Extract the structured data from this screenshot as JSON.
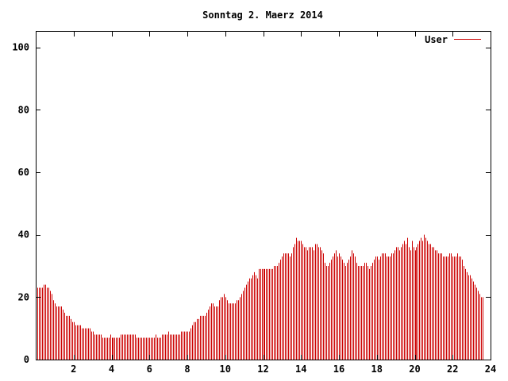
{
  "chart_data": {
    "type": "bar",
    "title": "Sonntag 2. Maerz 2014",
    "xlabel": "",
    "ylabel": "",
    "xlim": [
      0,
      24
    ],
    "ylim": [
      0,
      105
    ],
    "x_ticks": [
      2,
      4,
      6,
      8,
      10,
      12,
      14,
      16,
      18,
      20,
      22,
      24
    ],
    "x_tick_labels": [
      "2",
      "4",
      "6",
      "8",
      "10",
      "12",
      "14",
      "16",
      "18",
      "20",
      "22",
      "24"
    ],
    "y_ticks": [
      0,
      20,
      40,
      60,
      80,
      100
    ],
    "y_tick_labels": [
      "0",
      "20",
      "40",
      "60",
      "80",
      "100"
    ],
    "grid": false,
    "legend_position": "top-right",
    "colors": {
      "series": "#cc0000",
      "axes": "#000000",
      "background": "#ffffff"
    },
    "series": [
      {
        "name": "User",
        "step_minutes": 5,
        "values": [
          23,
          23,
          23,
          23,
          23,
          24,
          24,
          23,
          23,
          22,
          21,
          19,
          18,
          17,
          17,
          17,
          17,
          16,
          15,
          14,
          14,
          14,
          13,
          12,
          12,
          11,
          11,
          11,
          11,
          10,
          10,
          10,
          10,
          10,
          10,
          9,
          9,
          8,
          8,
          8,
          8,
          8,
          7,
          7,
          7,
          7,
          7,
          8,
          7,
          7,
          7,
          7,
          7,
          7,
          8,
          8,
          8,
          8,
          8,
          8,
          8,
          8,
          8,
          8,
          7,
          7,
          7,
          7,
          7,
          7,
          7,
          7,
          7,
          7,
          7,
          7,
          8,
          7,
          7,
          7,
          8,
          8,
          8,
          8,
          9,
          8,
          8,
          8,
          8,
          8,
          8,
          8,
          9,
          9,
          9,
          9,
          9,
          9,
          10,
          11,
          12,
          12,
          13,
          13,
          14,
          14,
          14,
          14,
          15,
          16,
          17,
          18,
          18,
          17,
          17,
          17,
          19,
          20,
          20,
          21,
          20,
          19,
          18,
          18,
          18,
          18,
          18,
          19,
          19,
          20,
          21,
          22,
          23,
          24,
          25,
          26,
          26,
          27,
          28,
          27,
          26,
          29,
          29,
          29,
          29,
          29,
          29,
          29,
          29,
          29,
          29,
          30,
          30,
          30,
          31,
          32,
          33,
          34,
          34,
          34,
          34,
          33,
          34,
          36,
          37,
          39,
          38,
          38,
          38,
          37,
          36,
          36,
          35,
          36,
          36,
          36,
          35,
          37,
          37,
          36,
          36,
          35,
          34,
          31,
          30,
          30,
          31,
          32,
          33,
          34,
          35,
          33,
          34,
          33,
          32,
          31,
          30,
          31,
          32,
          33,
          35,
          34,
          33,
          31,
          30,
          30,
          30,
          30,
          31,
          31,
          30,
          29,
          30,
          31,
          32,
          33,
          33,
          32,
          33,
          34,
          34,
          34,
          33,
          33,
          33,
          34,
          34,
          35,
          36,
          36,
          35,
          36,
          37,
          38,
          37,
          39,
          36,
          35,
          38,
          36,
          35,
          36,
          37,
          38,
          39,
          38,
          40,
          39,
          38,
          37,
          37,
          36,
          36,
          35,
          35,
          34,
          34,
          34,
          33,
          33,
          33,
          33,
          34,
          34,
          33,
          33,
          33,
          34,
          33,
          33,
          32,
          30,
          29,
          28,
          27,
          27,
          26,
          25,
          24,
          23,
          22,
          21,
          20,
          20
        ]
      }
    ]
  }
}
